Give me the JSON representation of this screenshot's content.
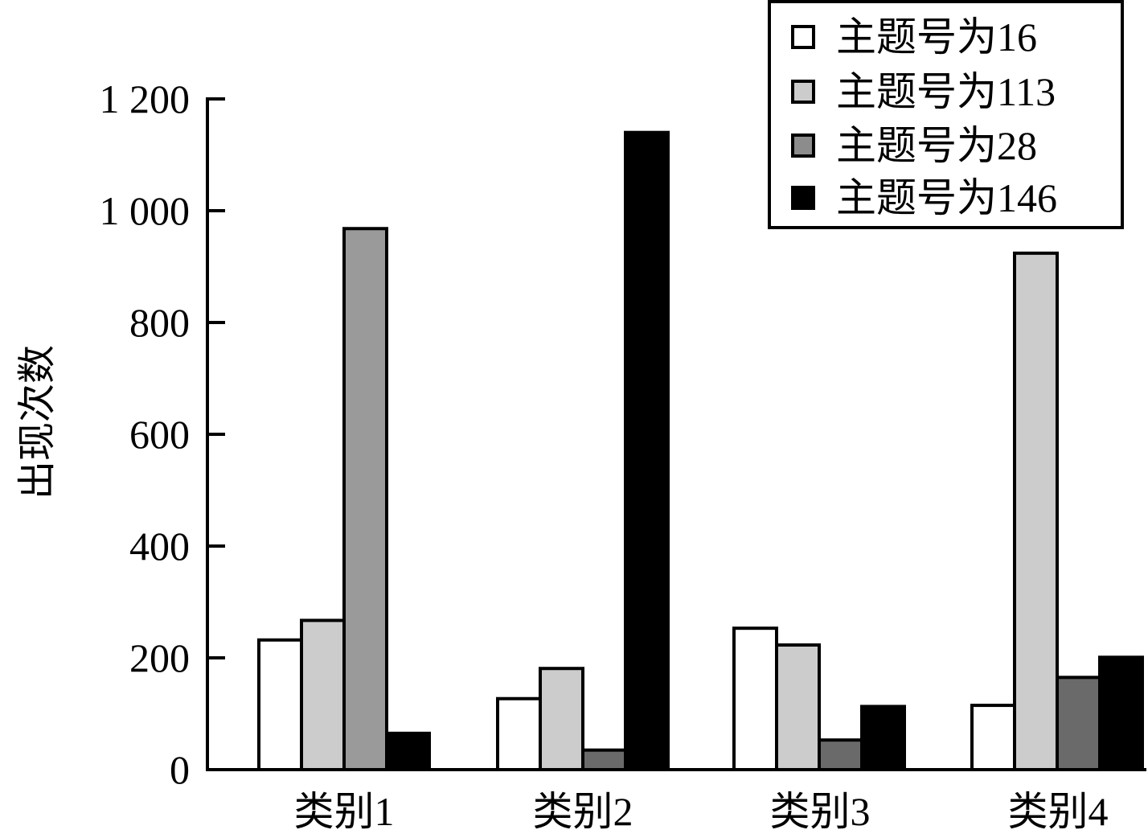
{
  "chart_data": {
    "type": "bar",
    "title": "",
    "xlabel": "",
    "ylabel": "出现次数",
    "ylim": [
      0,
      1200
    ],
    "yticks": [
      0,
      200,
      400,
      600,
      800,
      1000,
      1200
    ],
    "ytick_labels": [
      "0",
      "200",
      "400",
      "600",
      "800",
      "1 000",
      "1 200"
    ],
    "categories": [
      "类别1",
      "类别2",
      "类别3",
      "类别4"
    ],
    "series": [
      {
        "name": "主题号为16",
        "color": "#ffffff",
        "values": [
          232,
          127,
          253,
          115
        ]
      },
      {
        "name": "主题号为113",
        "color": "#cccccc",
        "values": [
          267,
          181,
          223,
          924
        ]
      },
      {
        "name": "主题号为28",
        "color": "#6a6a6a",
        "values": [
          968,
          35,
          53,
          165
        ],
        "bar_colors": [
          "#9a9a9a",
          "#6a6a6a",
          "#6a6a6a",
          "#6a6a6a"
        ]
      },
      {
        "name": "主题号为146",
        "color": "#000000",
        "values": [
          65,
          1140,
          113,
          201
        ]
      }
    ],
    "legend_position": "top-right",
    "grid": false
  }
}
